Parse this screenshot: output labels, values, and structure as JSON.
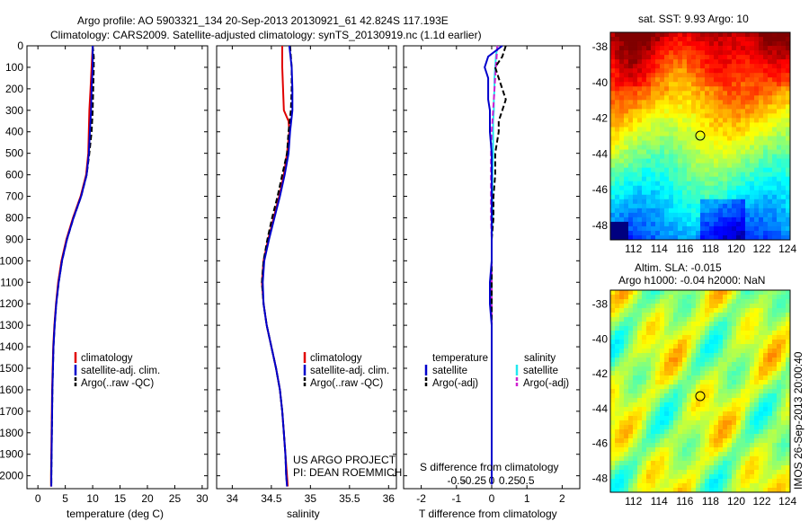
{
  "figure": {
    "title_line1": "Argo profile: AO 5903321_134 20-Sep-2013 20130921_61 42.824S 117.193E",
    "title_line2": "Climatology: CARS2009. Satellite-adjusted climatology: synTS_20130919.nc (1.1d earlier)",
    "watermark": "IMOS 26-Sep-2013 20:00:40",
    "project_line1": "US ARGO PROJECT",
    "project_line2": "PI: DEAN ROEMMICH"
  },
  "colors": {
    "climatology": "#e00000",
    "satellite": "#0000cc",
    "argo": "#000000",
    "sal_satellite": "#22e8ee",
    "sal_argo": "#d020d0"
  },
  "chart_data": [
    {
      "type": "line",
      "id": "temperature",
      "xlabel": "temperature (deg C)",
      "ylabel": "",
      "xlim": [
        -2,
        31
      ],
      "ylim": [
        2060,
        0
      ],
      "xticks": [
        0,
        5,
        10,
        15,
        20,
        25,
        30
      ],
      "yticks": [
        0,
        100,
        200,
        300,
        400,
        500,
        600,
        700,
        800,
        900,
        1000,
        1100,
        1200,
        1300,
        1400,
        1500,
        1600,
        1700,
        1800,
        1900,
        2000
      ],
      "legend": [
        "climatology",
        "satellite-adj. clim.",
        "Argo(..raw -QC)"
      ],
      "legend_position": "lower-right",
      "series": [
        {
          "name": "climatology",
          "depth": [
            0,
            100,
            200,
            300,
            400,
            500,
            600,
            700,
            800,
            900,
            1000,
            1100,
            1200,
            1300,
            1400,
            1500,
            1600,
            1700,
            1800,
            1900,
            2000,
            2050
          ],
          "values": [
            10.0,
            9.8,
            9.6,
            9.4,
            9.3,
            9.2,
            8.8,
            7.8,
            6.4,
            5.2,
            4.3,
            3.7,
            3.3,
            3.0,
            2.8,
            2.7,
            2.6,
            2.55,
            2.5,
            2.45,
            2.4,
            2.4
          ]
        },
        {
          "name": "satellite-adj. clim.",
          "depth": [
            0,
            100,
            200,
            300,
            400,
            500,
            600,
            700,
            800,
            900,
            1000,
            1100,
            1200,
            1300,
            1400,
            1500,
            1600,
            1700,
            1800,
            1900,
            2000,
            2050
          ],
          "values": [
            10.0,
            10.0,
            9.8,
            9.7,
            9.5,
            9.3,
            8.9,
            7.9,
            6.5,
            5.3,
            4.4,
            3.8,
            3.35,
            3.05,
            2.85,
            2.75,
            2.65,
            2.6,
            2.55,
            2.5,
            2.45,
            2.45
          ]
        },
        {
          "name": "Argo(..raw -QC)",
          "depth": [
            0,
            50,
            100,
            200,
            300,
            400,
            500,
            600,
            700,
            800,
            900,
            1000,
            1100,
            1200,
            1300,
            1400,
            1500,
            1600,
            1700,
            1800,
            1900,
            2000,
            2040
          ],
          "values": [
            10.0,
            10.2,
            10.2,
            10.1,
            10.0,
            9.8,
            9.4,
            8.9,
            7.9,
            6.5,
            5.3,
            4.4,
            3.8,
            3.35,
            3.05,
            2.85,
            2.75,
            2.65,
            2.6,
            2.55,
            2.5,
            2.45,
            2.45
          ]
        }
      ]
    },
    {
      "type": "line",
      "id": "salinity",
      "xlabel": "salinity",
      "ylabel": "",
      "xlim": [
        33.8,
        36.1
      ],
      "ylim": [
        2060,
        0
      ],
      "xticks": [
        34,
        34.5,
        35,
        35.5,
        36
      ],
      "legend": [
        "climatology",
        "satellite-adj. clim.",
        "Argo(..raw -QC)"
      ],
      "legend_position": "lower-right",
      "series": [
        {
          "name": "climatology",
          "depth": [
            0,
            100,
            200,
            300,
            350,
            400,
            500,
            600,
            700,
            800,
            900,
            1000,
            1100,
            1200,
            1300,
            1400,
            1500,
            1600,
            1700,
            1800,
            1900,
            2000,
            2050
          ],
          "values": [
            34.64,
            34.64,
            34.65,
            34.66,
            34.72,
            34.73,
            34.7,
            34.66,
            34.6,
            34.53,
            34.46,
            34.4,
            34.38,
            34.4,
            34.44,
            34.5,
            34.56,
            34.61,
            34.64,
            34.66,
            34.68,
            34.7,
            34.71
          ]
        },
        {
          "name": "satellite-adj. clim.",
          "depth": [
            0,
            100,
            200,
            300,
            400,
            500,
            600,
            700,
            800,
            900,
            1000,
            1100,
            1200,
            1300,
            1400,
            1500,
            1600,
            1700,
            1800,
            1900,
            2000,
            2050
          ],
          "values": [
            34.73,
            34.76,
            34.77,
            34.77,
            34.74,
            34.72,
            34.67,
            34.61,
            34.54,
            34.47,
            34.41,
            34.39,
            34.4,
            34.44,
            34.5,
            34.56,
            34.61,
            34.64,
            34.66,
            34.68,
            34.69,
            34.7
          ]
        },
        {
          "name": "Argo(..raw -QC)",
          "depth": [
            0,
            100,
            200,
            300,
            400,
            500,
            600,
            700,
            800,
            900,
            1000,
            1100,
            1200,
            1300,
            1400,
            1500,
            1600,
            1700,
            1800,
            1900,
            2000,
            2040
          ],
          "values": [
            34.74,
            34.76,
            34.76,
            34.75,
            34.72,
            34.7,
            34.64,
            34.58,
            34.51,
            34.45,
            34.4,
            34.38,
            34.4,
            34.44,
            34.5,
            34.56,
            34.61,
            34.64,
            34.66,
            34.68,
            34.69,
            34.7
          ]
        }
      ]
    },
    {
      "type": "line",
      "id": "difference",
      "xlabel": "T difference from climatology",
      "xlabel_top": "S difference from climatology",
      "ylabel": "",
      "xlim": [
        -2.5,
        2.5
      ],
      "ylim": [
        2060,
        0
      ],
      "xticks_T": [
        -2,
        -1,
        0,
        1,
        2
      ],
      "xticks_S": [
        -0.5,
        -0.25,
        0,
        0.25,
        0.5
      ],
      "legend_headers": [
        "temperature",
        "salinity"
      ],
      "legend": [
        "satellite",
        "Argo(-adj)",
        "satellite",
        "Argo(-adj)"
      ],
      "legend_position": "lower-center",
      "series": [
        {
          "name": "temperature satellite",
          "depth": [
            0,
            50,
            100,
            150,
            200,
            250,
            300,
            350,
            400,
            500,
            600,
            700,
            800,
            900,
            1000,
            1100,
            1200,
            1300,
            1400,
            1500,
            1600,
            1700,
            1800,
            1900,
            2000,
            2040
          ],
          "values": [
            0.3,
            -0.1,
            -0.2,
            -0.1,
            -0.1,
            -0.1,
            -0.05,
            -0.05,
            -0.05,
            0.0,
            0.0,
            0.0,
            0.0,
            0.0,
            0.0,
            -0.05,
            -0.05,
            0.0,
            0.0,
            0.0,
            0.0,
            0.0,
            0.0,
            0.0,
            0.0,
            0.0
          ]
        },
        {
          "name": "temperature Argo(-adj)",
          "depth": [
            0,
            50,
            100,
            150,
            200,
            250,
            300,
            350,
            400,
            500,
            600,
            700,
            800,
            900,
            1000,
            1100,
            1200,
            1300,
            1400,
            1500,
            1600,
            1700,
            1800,
            1900,
            2000,
            2040
          ],
          "values": [
            0.4,
            0.3,
            0.1,
            0.2,
            0.3,
            0.4,
            0.3,
            0.2,
            0.2,
            0.1,
            0.1,
            0.05,
            0.05,
            0.0,
            0.0,
            0.0,
            0.0,
            0.0,
            0.0,
            0.0,
            0.0,
            0.0,
            0.0,
            0.0,
            0.0,
            0.0
          ]
        },
        {
          "name": "salinity satellite",
          "depth": [
            0,
            50,
            100,
            150,
            200,
            250,
            300,
            350,
            400,
            500,
            600,
            700,
            800,
            900,
            1000,
            1100,
            1200,
            1300,
            1400,
            1500,
            1600,
            1700,
            1800,
            1900,
            2000,
            2040
          ],
          "values": [
            0.08,
            0.06,
            0.05,
            0.04,
            0.04,
            0.03,
            0.03,
            0.02,
            0.02,
            0.02,
            0.01,
            0.01,
            0.01,
            0.0,
            0.0,
            0.0,
            0.0,
            0.0,
            0.0,
            0.0,
            0.0,
            0.0,
            0.0,
            0.0,
            0.0,
            0.0
          ]
        },
        {
          "name": "salinity Argo(-adj)",
          "depth": [
            0,
            50,
            100,
            150,
            200,
            250,
            300,
            350,
            400,
            500,
            600,
            700,
            800,
            900,
            1000,
            1100,
            1200,
            1300,
            1400,
            1500,
            1600,
            1700,
            1800,
            1900,
            2000,
            2040
          ],
          "values": [
            0.08,
            0.07,
            0.06,
            0.05,
            0.04,
            0.03,
            0.02,
            0.01,
            0.0,
            -0.01,
            -0.01,
            -0.01,
            -0.01,
            0.0,
            0.0,
            0.0,
            0.0,
            0.0,
            0.0,
            0.0,
            0.0,
            0.0,
            0.0,
            0.0,
            0.0,
            0.0
          ]
        }
      ]
    },
    {
      "type": "heatmap",
      "id": "sst_map",
      "title": "sat. SST: 9.93 Argo: 10",
      "xlim": [
        110.2,
        124.2
      ],
      "ylim": [
        -48.8,
        -37.2
      ],
      "xticks": [
        112,
        114,
        116,
        118,
        120,
        122,
        124
      ],
      "yticks": [
        -38,
        -40,
        -42,
        -44,
        -46,
        -48
      ],
      "marker": {
        "lon": 117.193,
        "lat": -42.824
      }
    },
    {
      "type": "heatmap",
      "id": "sla_map",
      "title_line1": "Altim. SLA: -0.015",
      "title_line2": "Argo h1000: -0.04 h2000: NaN",
      "xlim": [
        110.2,
        124.2
      ],
      "ylim": [
        -48.8,
        -37.2
      ],
      "xticks": [
        112,
        114,
        116,
        118,
        120,
        122,
        124
      ],
      "yticks": [
        -38,
        -40,
        -42,
        -44,
        -46,
        -48
      ],
      "marker": {
        "lon": 117.193,
        "lat": -42.824
      }
    }
  ]
}
